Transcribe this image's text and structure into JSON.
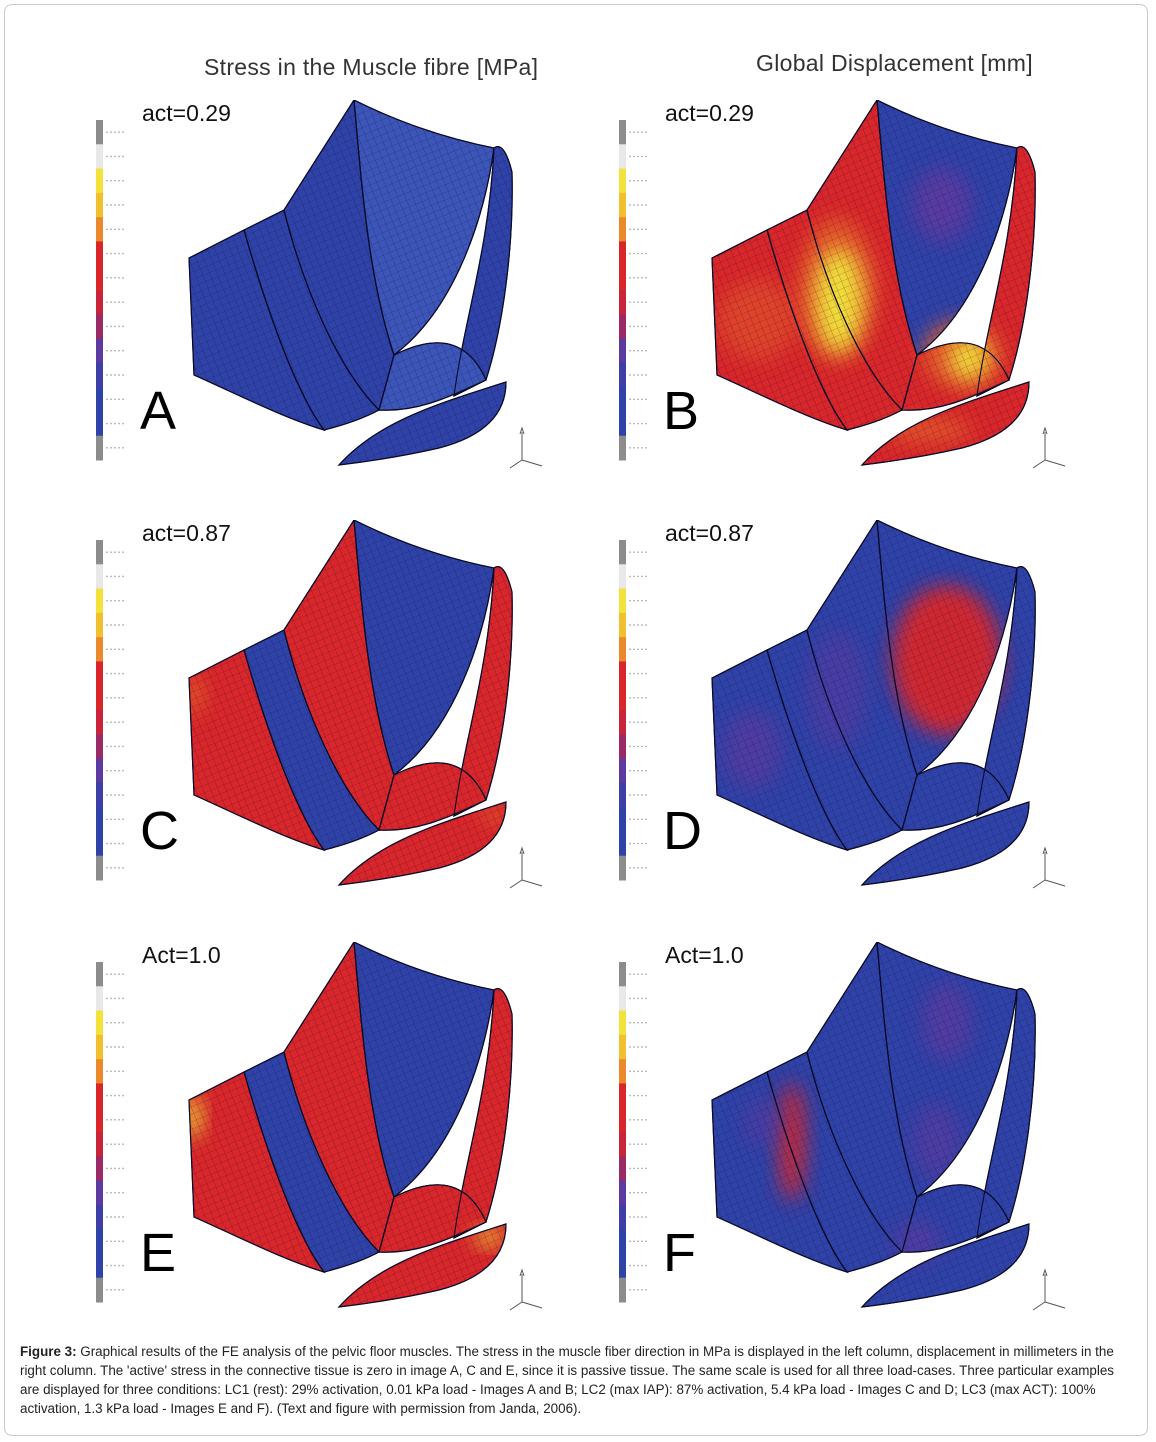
{
  "columns": {
    "left_title": "Stress in the Muscle fibre [MPa]",
    "right_title": "Global Displacement [mm]"
  },
  "panels": [
    {
      "letter": "A",
      "act": "act=0.29",
      "kind": "stress",
      "state": "rest"
    },
    {
      "letter": "B",
      "act": "act=0.29",
      "kind": "displacement",
      "state": "rest"
    },
    {
      "letter": "C",
      "act": "act=0.87",
      "kind": "stress",
      "state": "iap"
    },
    {
      "letter": "D",
      "act": "act=0.87",
      "kind": "displacement",
      "state": "iap"
    },
    {
      "letter": "E",
      "act": "Act=1.0",
      "kind": "stress",
      "state": "act"
    },
    {
      "letter": "F",
      "act": "Act=1.0",
      "kind": "displacement",
      "state": "act"
    }
  ],
  "colors": {
    "blue": "#2f42a8",
    "blue_light": "#3c55b8",
    "red": "#d9262a",
    "orange": "#e6602a",
    "yellow": "#f2e23a",
    "purple": "#5c3aa0",
    "grey": "#8c8c8c"
  },
  "caption": {
    "label": "Figure 3:",
    "text": "Graphical results of the FE analysis of the pelvic floor muscles. The stress in the muscle fiber direction in MPa is displayed in the left column, displacement in millimeters in the right column. The 'active' stress in the connective tissue is zero in image A, C and E, since it is passive tissue. The same scale is used for all three load-cases. Three particular examples are displayed for three conditions: LC1 (rest): 29% activation, 0.01 kPa load - Images A and B; LC2 (max IAP): 87% activation, 5.4 kPa load - Images C and D; LC3 (max ACT): 100% activation, 1.3 kPa load - Images E and F). (Text and figure with permission from Janda, 2006)."
  }
}
